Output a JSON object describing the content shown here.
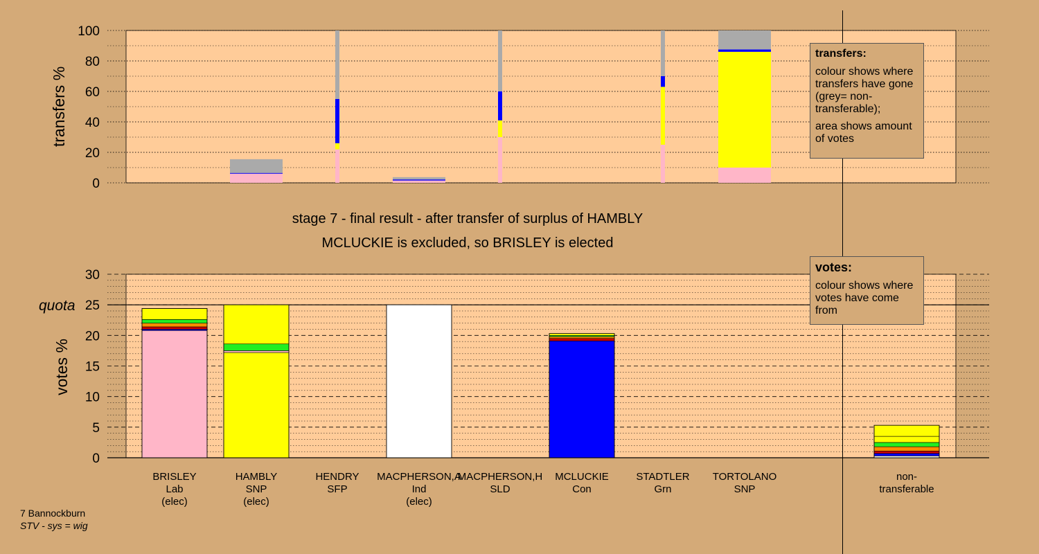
{
  "page": {
    "stage_title": "stage 7 - final result - after transfer of surplus of HAMBLY",
    "stage_subtitle": "MCLUCKIE is excluded, so BRISLEY is elected",
    "footer_line1": "7 Bannockburn",
    "footer_line2": "STV - sys = wig"
  },
  "legends": {
    "transfers": {
      "title": "transfers:",
      "line1": "colour shows where transfers have gone (grey= non-transferable);",
      "line2": "area shows amount of votes"
    },
    "votes": {
      "title": "votes:",
      "line1": "colour shows where votes have come from"
    }
  },
  "colors": {
    "background": "#d4aa78",
    "plot_area": "#ffcc99",
    "Lab": "#ffb6c8",
    "SNP": "#ffff00",
    "SFP": "#ff8c00",
    "Ind": "#ffffff",
    "SLD": "#cc0000",
    "Con": "#0000ff",
    "Grn": "#22ee22",
    "non-transferable": "#aaaaaa"
  },
  "chart_data": [
    {
      "type": "bar",
      "panel": "transfers",
      "ylabel": "transfers %",
      "ylim": [
        0,
        100
      ],
      "yticks": [
        0,
        20,
        40,
        60,
        80,
        100
      ],
      "categories": [
        "BRISLEY",
        "HAMBLY",
        "HENDRY",
        "MACPHERSON,A",
        "MACPHERSON,H",
        "MCLUCKIE",
        "STADTLER",
        "TORTOLANO",
        "non-transferable"
      ],
      "bars": [
        {
          "category": "HAMBLY",
          "width": "wide",
          "segments": [
            {
              "party": "Lab",
              "value": 6
            },
            {
              "party": "Con",
              "value": 0.5
            },
            {
              "party": "non-transferable",
              "value": 9
            }
          ]
        },
        {
          "category": "HENDRY",
          "width": "thin",
          "segments": [
            {
              "party": "Lab",
              "value": 22
            },
            {
              "party": "SNP",
              "value": 4
            },
            {
              "party": "Con",
              "value": 29
            },
            {
              "party": "non-transferable",
              "value": 45
            }
          ]
        },
        {
          "category": "MACPHERSON,A",
          "width": "wide",
          "segments": [
            {
              "party": "Lab",
              "value": 1.5
            },
            {
              "party": "Con",
              "value": 0.7
            },
            {
              "party": "non-transferable",
              "value": 1.5
            }
          ]
        },
        {
          "category": "MACPHERSON,H",
          "width": "thin",
          "segments": [
            {
              "party": "Lab",
              "value": 30
            },
            {
              "party": "SNP",
              "value": 11
            },
            {
              "party": "Con",
              "value": 19
            },
            {
              "party": "non-transferable",
              "value": 40
            }
          ]
        },
        {
          "category": "STADTLER",
          "width": "thin",
          "segments": [
            {
              "party": "Lab",
              "value": 25
            },
            {
              "party": "SNP",
              "value": 38
            },
            {
              "party": "Con",
              "value": 7
            },
            {
              "party": "non-transferable",
              "value": 30
            }
          ]
        },
        {
          "category": "TORTOLANO",
          "width": "wide",
          "segments": [
            {
              "party": "Lab",
              "value": 10
            },
            {
              "party": "SNP",
              "value": 76
            },
            {
              "party": "Con",
              "value": 1.5
            },
            {
              "party": "non-transferable",
              "value": 12.5
            }
          ]
        }
      ]
    },
    {
      "type": "bar",
      "panel": "votes",
      "ylabel": "votes %",
      "ylim": [
        0,
        30
      ],
      "yticks": [
        0,
        5,
        10,
        15,
        20,
        25,
        30
      ],
      "quota": 25,
      "quota_label": "quota",
      "candidates": [
        {
          "name": "BRISLEY",
          "party": "Lab",
          "status": "(elec)",
          "segments": [
            {
              "party": "Lab",
              "value": 20.8
            },
            {
              "party": "Con",
              "value": 0.2
            },
            {
              "party": "SLD",
              "value": 0.4
            },
            {
              "party": "SFP",
              "value": 0.6
            },
            {
              "party": "Grn",
              "value": 0.6
            },
            {
              "party": "SNP",
              "value": 1.8
            }
          ]
        },
        {
          "name": "HAMBLY",
          "party": "SNP",
          "status": "(elec)",
          "segments": [
            {
              "party": "SNP",
              "value": 17.2
            },
            {
              "party": "Lab",
              "value": 0.3
            },
            {
              "party": "Grn",
              "value": 1.1
            },
            {
              "party": "SNP",
              "value": 6.4
            }
          ]
        },
        {
          "name": "HENDRY",
          "party": "SFP",
          "status": "",
          "segments": [
            {
              "party": "SFP",
              "value": 0
            }
          ]
        },
        {
          "name": "MACPHERSON,A",
          "party": "Ind",
          "status": "(elec)",
          "segments": [
            {
              "party": "Ind",
              "value": 25
            }
          ]
        },
        {
          "name": "MACPHERSON,H",
          "party": "SLD",
          "status": "",
          "segments": [
            {
              "party": "SLD",
              "value": 0
            }
          ]
        },
        {
          "name": "MCLUCKIE",
          "party": "Con",
          "status": "",
          "segments": [
            {
              "party": "Con",
              "value": 19.1
            },
            {
              "party": "SLD",
              "value": 0.4
            },
            {
              "party": "SFP",
              "value": 0.3
            },
            {
              "party": "Grn",
              "value": 0.2
            },
            {
              "party": "SNP",
              "value": 0.3
            }
          ]
        },
        {
          "name": "STADTLER",
          "party": "Grn",
          "status": "",
          "segments": [
            {
              "party": "Grn",
              "value": 0
            }
          ]
        },
        {
          "name": "TORTOLANO",
          "party": "SNP",
          "status": "",
          "segments": [
            {
              "party": "SNP",
              "value": 0
            }
          ]
        }
      ],
      "nontransferable": {
        "label1": "non-",
        "label2": "transferable",
        "segments": [
          {
            "party": "Ind",
            "value": 0.3
          },
          {
            "party": "Con",
            "value": 0.4
          },
          {
            "party": "SLD",
            "value": 0.4
          },
          {
            "party": "SFP",
            "value": 0.7
          },
          {
            "party": "Grn",
            "value": 0.7
          },
          {
            "party": "SNP",
            "value": 1.0
          },
          {
            "party": "SNP",
            "value": 1.8
          }
        ]
      }
    }
  ]
}
